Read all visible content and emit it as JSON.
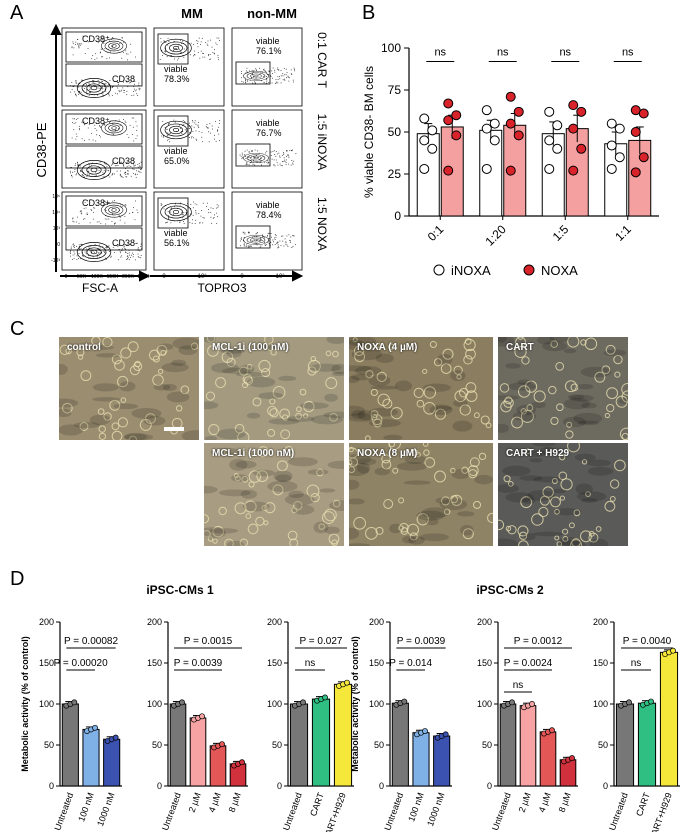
{
  "panels": {
    "a": "A",
    "b": "B",
    "c": "C",
    "d": "D"
  },
  "panelA": {
    "col_headers": [
      "MM",
      "non-MM"
    ],
    "row_labels": [
      "0:1 CAR T",
      "1:5 iNOXA",
      "1:5 NOXA"
    ],
    "y_axis_label": "CD38-PE",
    "x_label_left": "FSC-A",
    "x_label_right": "TOPRO3",
    "gate_pos": [
      "CD38⁺",
      "CD38⁺",
      "CD38+"
    ],
    "gate_neg": [
      "CD38",
      "CD38",
      "CD38-"
    ],
    "mm_viable": [
      "viable\n78.3%",
      "viable\n65.0%",
      "viable\n56.1%"
    ],
    "mm_viable_word": "viable",
    "mm_viable_pct": [
      "78.3%",
      "65.0%",
      "56.1%"
    ],
    "non_viable_pct": [
      "76.1%",
      "76.7%",
      "78.4%"
    ],
    "fsc_ticks": [
      "0",
      "50K",
      "100K",
      "150K",
      "200K",
      "250K"
    ],
    "cd38_ticks": [
      "10⁵",
      "10⁴",
      "10³",
      "0",
      "-10³"
    ],
    "topro_ticks_mm": [
      "0",
      "10³"
    ],
    "topro_ticks_non": [
      "0",
      "10³"
    ]
  },
  "chart_data": [
    {
      "type": "bar",
      "id": "B",
      "ylabel": "% viable CD38- BM cells",
      "categories": [
        "0:1",
        "1:20",
        "1:5",
        "1:1"
      ],
      "ylim": [
        0,
        100
      ],
      "yticks": [
        "0",
        "25",
        "50",
        "75",
        "100"
      ],
      "series": [
        {
          "name": "iNOXA",
          "color": "#ffffff",
          "values": [
            49,
            51,
            49,
            43
          ],
          "sem": [
            6,
            6,
            7,
            7
          ],
          "points": [
            [
              58,
              51,
              45,
              40,
              28
            ],
            [
              63,
              55,
              52,
              45,
              28
            ],
            [
              62,
              54,
              45,
              40,
              28
            ],
            [
              55,
              52,
              42,
              35,
              28
            ]
          ]
        },
        {
          "name": "NOXA",
          "color": "#f4a0a0",
          "values": [
            53,
            54,
            52,
            45
          ],
          "sem": [
            7,
            7,
            8,
            8
          ],
          "points": [
            [
              67,
              60,
              57,
              48,
              27
            ],
            [
              71,
              62,
              55,
              48,
              27
            ],
            [
              66,
              62,
              52,
              40,
              27
            ],
            [
              63,
              61,
              50,
              35,
              26
            ]
          ]
        }
      ],
      "sig": [
        "ns",
        "ns",
        "ns",
        "ns"
      ],
      "legend": [
        "iNOXA",
        "NOXA"
      ]
    },
    {
      "type": "bar",
      "id": "D1a",
      "categories": [
        "Untreated",
        "100 nM",
        "1000 nM"
      ],
      "values": [
        100,
        69,
        57
      ],
      "colors": [
        "#777777",
        "#7fb0e6",
        "#3c52b0"
      ],
      "ylim": [
        0,
        200
      ],
      "ylabel": "Metabolic activity (% of control)",
      "group": "MCL-1i",
      "pvals": [
        {
          "from": 0,
          "to": 2,
          "label": "P = 0.00082"
        },
        {
          "from": 0,
          "to": 1,
          "label": "P = 0.00020"
        }
      ]
    },
    {
      "type": "bar",
      "id": "D1b",
      "categories": [
        "Untreated",
        "2 µM",
        "4 µM",
        "8 µM"
      ],
      "values": [
        100,
        83,
        49,
        27
      ],
      "colors": [
        "#777777",
        "#f7a3a3",
        "#e35757",
        "#d0313d"
      ],
      "ylim": [
        0,
        200
      ],
      "group": "NOXA",
      "pvals": [
        {
          "from": 0,
          "to": 3,
          "label": "P = 0.0015"
        },
        {
          "from": 0,
          "to": 2,
          "label": "P = 0.0039"
        }
      ]
    },
    {
      "type": "bar",
      "id": "D1c",
      "categories": [
        "Untreated",
        "CART",
        "CART+H929"
      ],
      "values": [
        100,
        106,
        124
      ],
      "colors": [
        "#777777",
        "#2fbf82",
        "#f5e83a"
      ],
      "ylim": [
        0,
        200
      ],
      "pvals": [
        {
          "from": 0,
          "to": 2,
          "label": "P = 0.027"
        },
        {
          "from": 0,
          "to": 1,
          "label": "ns"
        }
      ]
    },
    {
      "type": "bar",
      "id": "D2a",
      "categories": [
        "Untreated",
        "100 nM",
        "1000 nM"
      ],
      "values": [
        101,
        65,
        61
      ],
      "colors": [
        "#777777",
        "#7fb0e6",
        "#3c52b0"
      ],
      "ylim": [
        0,
        200
      ],
      "ylabel": "Metabolic activity (% of control)",
      "group": "MCL-1i",
      "pvals": [
        {
          "from": 0,
          "to": 2,
          "label": "P = 0.0039"
        },
        {
          "from": 0,
          "to": 1,
          "label": "P = 0.014"
        }
      ]
    },
    {
      "type": "bar",
      "id": "D2b",
      "categories": [
        "Untreated",
        "2 µM",
        "4 µM",
        "8 µM"
      ],
      "values": [
        100,
        98,
        66,
        32
      ],
      "colors": [
        "#777777",
        "#f7a3a3",
        "#e35757",
        "#d0313d"
      ],
      "ylim": [
        0,
        200
      ],
      "group": "NOXA",
      "pvals": [
        {
          "from": 0,
          "to": 3,
          "label": "P = 0.0012"
        },
        {
          "from": 0,
          "to": 2,
          "label": "P = 0.0024"
        },
        {
          "from": 0,
          "to": 1,
          "label": "ns"
        }
      ]
    },
    {
      "type": "bar",
      "id": "D2c",
      "categories": [
        "Untreated",
        "CART",
        "CART+H929"
      ],
      "values": [
        100,
        101,
        163
      ],
      "colors": [
        "#777777",
        "#2fbf82",
        "#f5e83a"
      ],
      "ylim": [
        0,
        200
      ],
      "pvals": [
        {
          "from": 0,
          "to": 2,
          "label": "P = 0.0040"
        },
        {
          "from": 0,
          "to": 1,
          "label": "ns"
        }
      ]
    }
  ],
  "panelD": {
    "title1": "iPSC-CMs 1",
    "title2": "iPSC-CMs 2",
    "yticks": [
      "0",
      "50",
      "100",
      "150",
      "200"
    ]
  },
  "panelC": {
    "labels": [
      "control",
      "MCL-1i (100 nM)",
      "NOXA (4 µM)",
      "CART",
      "MCL-1i (1000 nM)",
      "NOXA (8 µM)",
      "CART + H929"
    ]
  }
}
